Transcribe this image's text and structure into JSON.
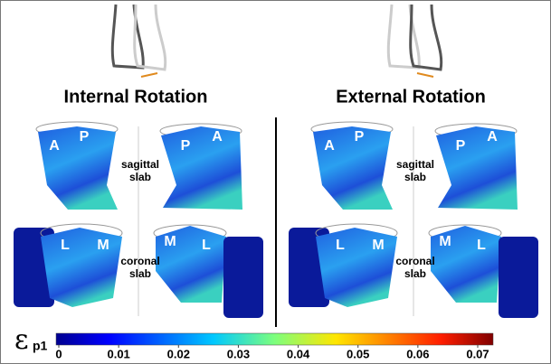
{
  "panels": [
    {
      "title": "Internal Rotation",
      "sagittal": [
        "sagittal",
        "slab"
      ],
      "coronal": [
        "coronal",
        "slab"
      ],
      "regions": [
        "A",
        "P",
        "P",
        "A",
        "L",
        "M",
        "M",
        "L"
      ]
    },
    {
      "title": "External Rotation",
      "sagittal": [
        "sagittal",
        "slab"
      ],
      "coronal": [
        "coronal",
        "slab"
      ],
      "regions": [
        "A",
        "P",
        "P",
        "A",
        "L",
        "M",
        "M",
        "L"
      ]
    }
  ],
  "colorbar": {
    "symbol": "ε",
    "subscript": "p1",
    "ticks": [
      0,
      0.01,
      0.02,
      0.03,
      0.04,
      0.05,
      0.06,
      0.07
    ]
  }
}
